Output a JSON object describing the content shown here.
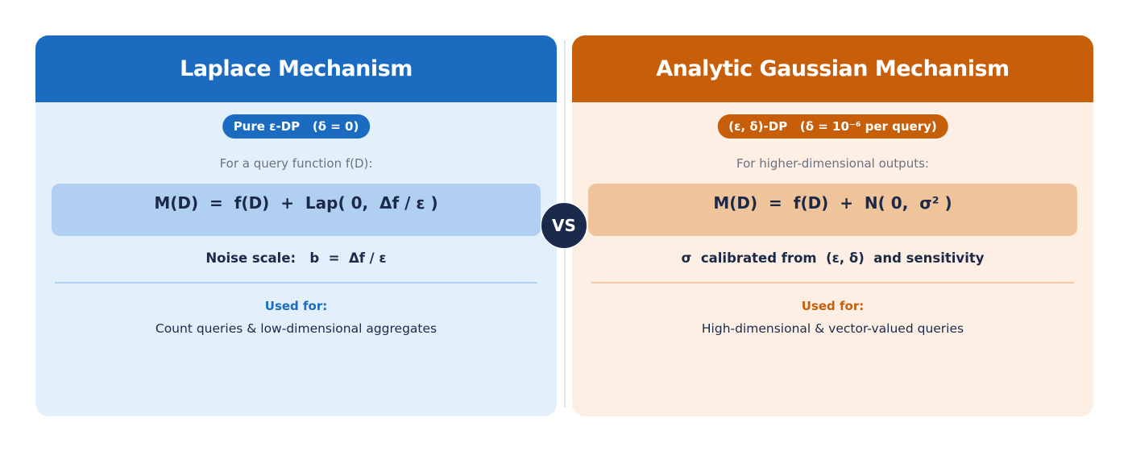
{
  "left": {
    "title": "Laplace Mechanism",
    "badge": "Pure ε-DP   (δ = 0)",
    "intro": "For a query function f(D):",
    "formula": "M(D)  =  f(D)  +  Lap( 0,  Δf / ε )",
    "note": "Noise scale:   b  =  Δf / ε",
    "used_label": "Used for:",
    "used_desc": "Count queries & low-dimensional aggregates"
  },
  "right": {
    "title": "Analytic Gaussian Mechanism",
    "badge": "(ε, δ)-DP   (δ = 10⁻⁶ per query)",
    "intro": "For higher-dimensional outputs:",
    "formula": "M(D)  =  f(D)  +  N( 0,  σ² )",
    "note": "σ  calibrated from  (ε, δ)  and sensitivity",
    "used_label": "Used for:",
    "used_desc": "High-dimensional & vector-valued queries"
  },
  "vs_label": "VS",
  "colors": {
    "blue": "#1b6cc1",
    "orange": "#c75e0a",
    "navy": "#1b2a4a"
  }
}
